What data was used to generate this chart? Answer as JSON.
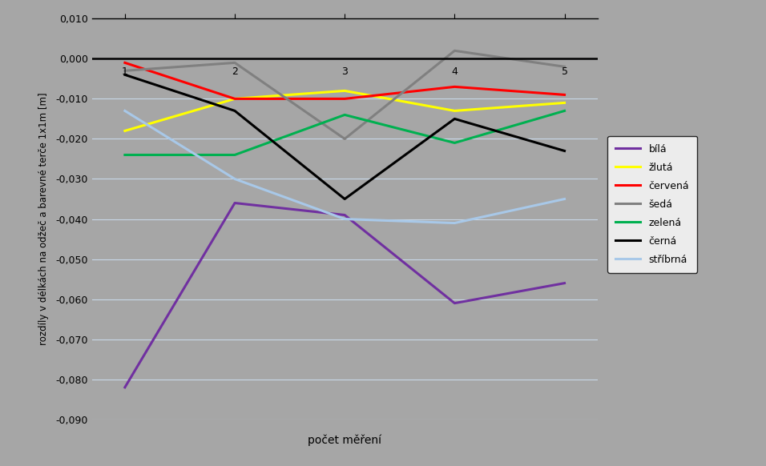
{
  "x": [
    1,
    2,
    3,
    4,
    5
  ],
  "series": {
    "bila": {
      "label": "bílá",
      "color": "#7030A0",
      "values": [
        -0.082,
        -0.036,
        -0.039,
        -0.061,
        -0.056
      ]
    },
    "zluta": {
      "label": "žlutá",
      "color": "#FFFF00",
      "values": [
        -0.018,
        -0.01,
        -0.008,
        -0.013,
        -0.011
      ]
    },
    "cervena": {
      "label": "červená",
      "color": "#FF0000",
      "values": [
        -0.001,
        -0.01,
        -0.01,
        -0.007,
        -0.009
      ]
    },
    "seda": {
      "label": "šedá",
      "color": "#808080",
      "values": [
        -0.003,
        -0.001,
        -0.02,
        0.002,
        -0.002
      ]
    },
    "zelena": {
      "label": "zelená",
      "color": "#00B050",
      "values": [
        -0.024,
        -0.024,
        -0.014,
        -0.021,
        -0.013
      ]
    },
    "cerna": {
      "label": "černá",
      "color": "#000000",
      "values": [
        -0.004,
        -0.013,
        -0.035,
        -0.015,
        -0.023
      ]
    },
    "stribrna": {
      "label": "stříbrná",
      "color": "#A8C8E8",
      "values": [
        -0.013,
        -0.03,
        -0.04,
        -0.041,
        -0.035
      ]
    }
  },
  "xlabel": "počet měření",
  "ylabel": "rozdíly v délkách na odžeč a barevné terče 1x1m [m]",
  "ylim": [
    -0.09,
    0.01
  ],
  "yticks": [
    0.01,
    0.0,
    -0.01,
    -0.02,
    -0.03,
    -0.04,
    -0.05,
    -0.06,
    -0.07,
    -0.08,
    -0.09
  ],
  "background_color": "#A6A6A6",
  "plot_bg_color": "#A6A6A6",
  "line_width": 2.2
}
